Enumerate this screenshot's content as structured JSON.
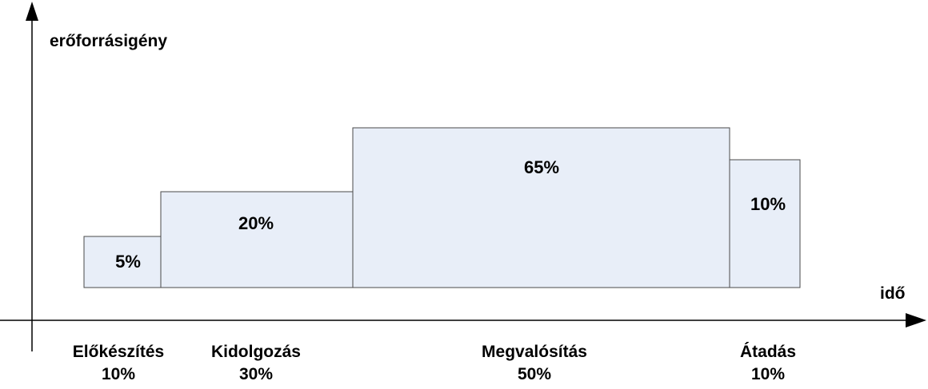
{
  "axes": {
    "y_label": "erőforrásigény",
    "x_label": "idő"
  },
  "colors": {
    "box_fill": "#e8eef8",
    "box_stroke": "#4a4a4a",
    "axis": "#000000"
  },
  "phases": [
    {
      "name": "Előkészítés",
      "duration_share": "10%",
      "resource_share": "5%",
      "duration_pct": 10,
      "resource_pct": 5
    },
    {
      "name": "Kidolgozás",
      "duration_share": "30%",
      "resource_share": "20%",
      "duration_pct": 30,
      "resource_pct": 20
    },
    {
      "name": "Megvalósítás",
      "duration_share": "50%",
      "resource_share": "65%",
      "duration_pct": 50,
      "resource_pct": 65
    },
    {
      "name": "Átadás",
      "duration_share": "10%",
      "resource_share": "10%",
      "duration_pct": 10,
      "resource_pct": 10
    }
  ]
}
